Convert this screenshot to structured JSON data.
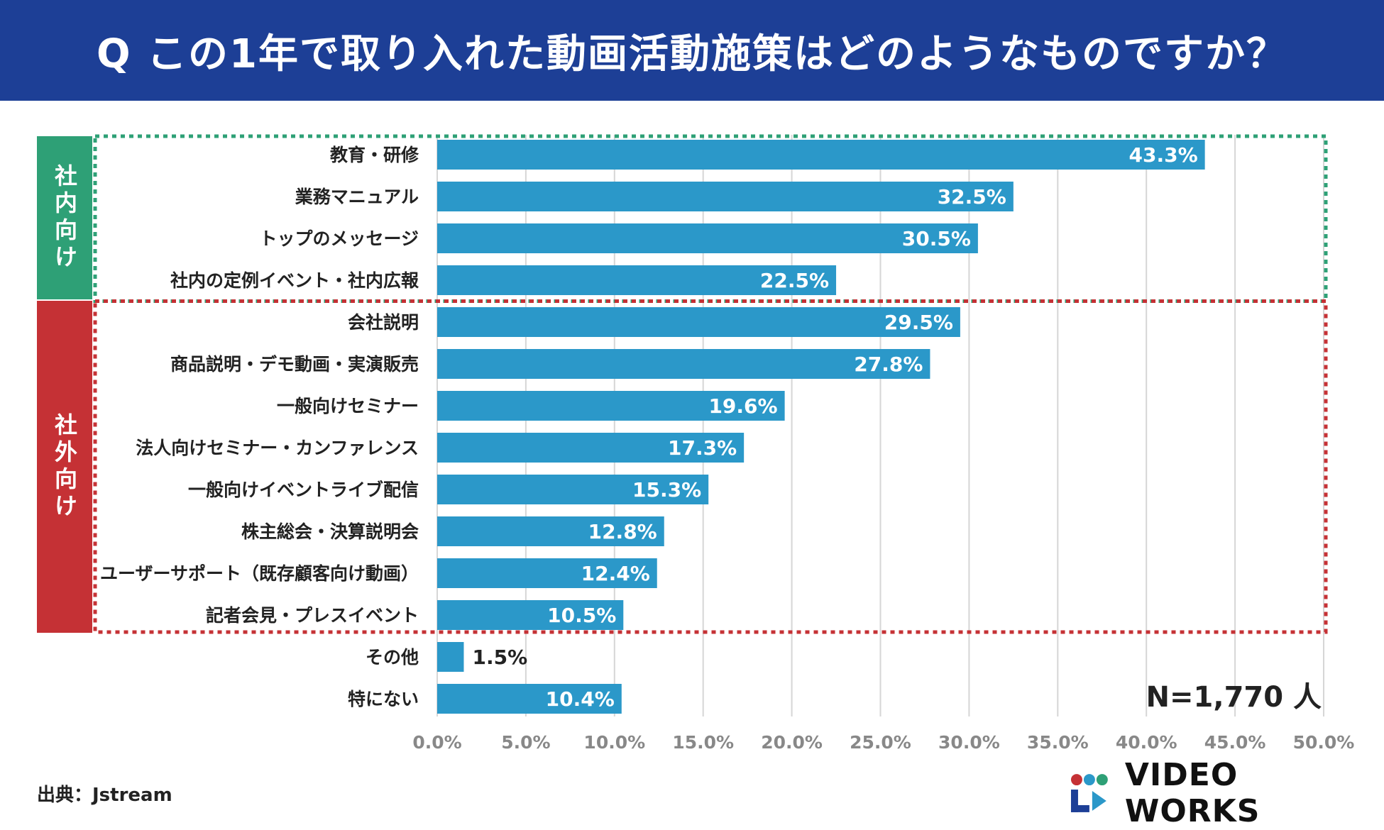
{
  "header": {
    "title": "Q この1年で取り入れた動画活動施策はどのようなものですか？"
  },
  "groups": {
    "internal_label": "社内向け",
    "external_label": "社外向け"
  },
  "sample_size": "N=1,770 人",
  "source": "出典：Jstream",
  "brand": {
    "name": "VIDEO WORKS"
  },
  "colors": {
    "header_bg": "#1d3f96",
    "bar": "#2b98c9",
    "internal": "#2ea076",
    "external": "#c53135",
    "grid": "#d6d6d6"
  },
  "chart_data": {
    "type": "bar",
    "orientation": "horizontal",
    "title": "Q この1年で取り入れた動画活動施策はどのようなものですか？",
    "categories": [
      "教育・研修",
      "業務マニュアル",
      "トップのメッセージ",
      "社内の定例イベント・社内広報",
      "会社説明",
      "商品説明・デモ動画・実演販売",
      "一般向けセミナー",
      "法人向けセミナー・カンファレンス",
      "一般向けイベントライブ配信",
      "株主総会・決算説明会",
      "ユーザーサポート（既存顧客向け動画）",
      "記者会見・プレスイベント",
      "その他",
      "特にない"
    ],
    "values": [
      43.3,
      32.5,
      30.5,
      22.5,
      29.5,
      27.8,
      19.6,
      17.3,
      15.3,
      12.8,
      12.4,
      10.5,
      1.5,
      10.4
    ],
    "value_labels": [
      "43.3%",
      "32.5%",
      "30.5%",
      "22.5%",
      "29.5%",
      "27.8%",
      "19.6%",
      "17.3%",
      "15.3%",
      "12.8%",
      "12.4%",
      "10.5%",
      "1.5%",
      "10.4%"
    ],
    "groups": [
      {
        "label": "社内向け",
        "start": 0,
        "end": 3
      },
      {
        "label": "社外向け",
        "start": 4,
        "end": 11
      }
    ],
    "xlim": [
      0,
      50
    ],
    "xticks": [
      "0.0%",
      "5.0%",
      "10.0%",
      "15.0%",
      "20.0%",
      "25.0%",
      "30.0%",
      "35.0%",
      "40.0%",
      "45.0%",
      "50.0%"
    ],
    "grid": true,
    "xlabel": "",
    "ylabel": ""
  }
}
